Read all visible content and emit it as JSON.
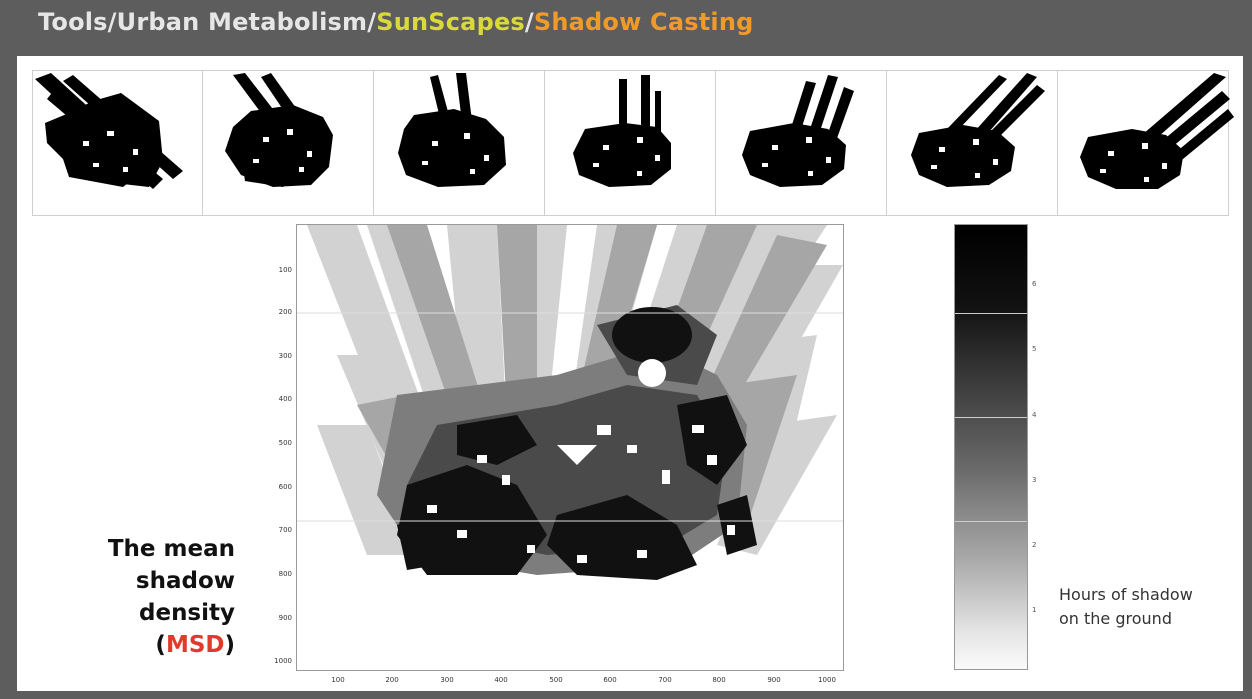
{
  "header": {
    "part1": "Tools",
    "part2": "Urban Metabolism",
    "part3": "SunScapes",
    "part4": "Shadow Casting",
    "separator": "/"
  },
  "colors": {
    "background": "#5d5d5d",
    "title_default": "#e6e6e6",
    "title_sunscapes": "#d9d93a",
    "title_shadow": "#f09a2a",
    "msd_accent": "#e23a2a"
  },
  "map": {
    "y_ticks": [
      "100",
      "200",
      "300",
      "400",
      "500",
      "600",
      "700",
      "800",
      "900",
      "1000"
    ],
    "x_ticks": [
      "100",
      "200",
      "300",
      "400",
      "500",
      "600",
      "700",
      "800",
      "900",
      "1000"
    ]
  },
  "colorbar": {
    "ticks": [
      "6",
      "5",
      "4",
      "3",
      "2",
      "1"
    ]
  },
  "msd_label": {
    "line1": "The mean",
    "line2": "shadow",
    "line3": "density",
    "open": "(",
    "abbr": "MSD",
    "close": ")"
  },
  "legend": {
    "line1": "Hours of shadow",
    "line2": "on the ground"
  }
}
